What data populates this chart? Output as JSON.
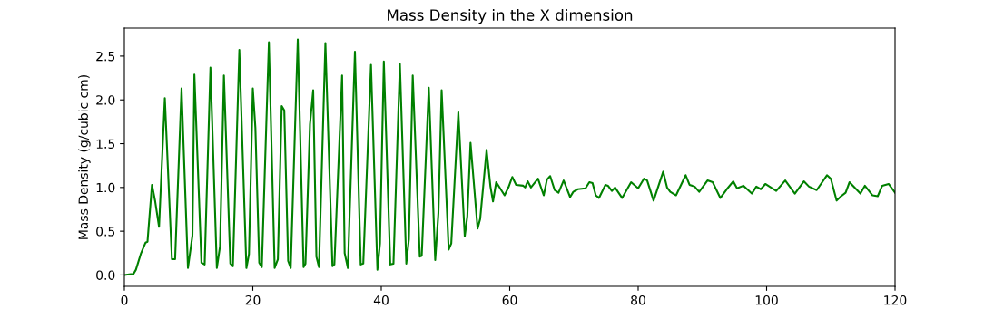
{
  "chart_data": {
    "type": "line",
    "title": "Mass Density in the X dimension",
    "ylabel": "Mass Density (g/cubic cm)",
    "xlim": [
      0,
      120
    ],
    "xticks": [
      0,
      20,
      40,
      60,
      80,
      100,
      120
    ],
    "ylim": [
      -0.13,
      2.82
    ],
    "yticks": [
      {
        "value": 0,
        "label": "0.0"
      },
      0.5,
      {
        "value": 1,
        "label": "1.0"
      },
      1.5,
      {
        "value": 2,
        "label": "2.0"
      },
      2.5
    ],
    "marker": "none",
    "line_style": "solid",
    "series": [
      {
        "color": "#008000",
        "x": [
          0,
          1.0,
          1.4,
          1.8,
          2.6,
          3.3,
          3.6,
          4.3,
          4.8,
          5.4,
          6.3,
          7.4,
          7.9,
          8.9,
          9.9,
          10.6,
          10.9,
          12.0,
          12.5,
          13.4,
          14.4,
          14.9,
          15.5,
          16.5,
          16.9,
          17.9,
          19.0,
          19.4,
          20.0,
          20.4,
          21.0,
          21.4,
          22.5,
          23.4,
          23.9,
          24.5,
          24.9,
          25.5,
          25.9,
          27.0,
          27.9,
          28.2,
          28.9,
          29.4,
          29.9,
          30.3,
          31.3,
          32.4,
          32.7,
          33.9,
          34.3,
          34.8,
          35.9,
          36.8,
          37.2,
          38.4,
          39.4,
          39.8,
          40.4,
          41.4,
          41.9,
          42.9,
          43.9,
          44.3,
          44.9,
          46.0,
          46.3,
          47.4,
          48.4,
          48.9,
          49.4,
          50.5,
          50.9,
          52.0,
          53.0,
          53.4,
          53.9,
          55.0,
          55.4,
          56.4,
          57.0,
          57.4,
          57.9,
          59.2,
          59.8,
          60.4,
          61.0,
          62.1,
          62.4,
          62.8,
          63.3,
          64.4,
          65.3,
          65.8,
          66.3,
          67.0,
          67.6,
          68.4,
          69.4,
          69.9,
          70.6,
          71.8,
          72.4,
          72.9,
          73.4,
          73.9,
          74.9,
          75.3,
          75.9,
          76.4,
          77.5,
          78.9,
          80.0,
          80.9,
          81.4,
          82.4,
          83.9,
          84.5,
          85.0,
          85.9,
          87.4,
          88.0,
          88.8,
          89.5,
          90.8,
          91.6,
          92.8,
          93.8,
          94.8,
          95.4,
          96.4,
          97.7,
          98.4,
          99.1,
          99.8,
          101.5,
          102.9,
          104.4,
          105.8,
          106.6,
          107.8,
          109.4,
          110.0,
          110.9,
          111.6,
          112.3,
          112.9,
          114.6,
          115.3,
          116.5,
          117.3,
          118.0,
          119.0,
          120
        ],
        "values": [
          0.0,
          0.01,
          0.01,
          0.06,
          0.25,
          0.37,
          0.38,
          1.03,
          0.84,
          0.55,
          2.02,
          0.18,
          0.18,
          2.13,
          0.08,
          0.45,
          2.29,
          0.14,
          0.12,
          2.37,
          0.08,
          0.33,
          2.28,
          0.13,
          0.1,
          2.57,
          0.08,
          0.24,
          2.13,
          1.68,
          0.14,
          0.09,
          2.66,
          0.08,
          0.18,
          1.93,
          1.88,
          0.16,
          0.08,
          2.69,
          0.09,
          0.13,
          1.72,
          2.11,
          0.21,
          0.09,
          2.65,
          0.1,
          0.12,
          2.28,
          0.25,
          0.08,
          2.55,
          0.12,
          0.13,
          2.4,
          0.06,
          0.36,
          2.44,
          0.12,
          0.13,
          2.41,
          0.13,
          0.41,
          2.28,
          0.21,
          0.22,
          2.14,
          0.17,
          0.71,
          2.11,
          0.29,
          0.36,
          1.86,
          0.44,
          0.67,
          1.51,
          0.53,
          0.64,
          1.43,
          1.01,
          0.84,
          1.06,
          0.91,
          1.0,
          1.12,
          1.03,
          1.02,
          1.0,
          1.07,
          1.0,
          1.1,
          0.91,
          1.09,
          1.13,
          0.97,
          0.94,
          1.08,
          0.89,
          0.95,
          0.98,
          0.99,
          1.06,
          1.05,
          0.91,
          0.88,
          1.03,
          1.02,
          0.96,
          1.0,
          0.88,
          1.06,
          0.99,
          1.1,
          1.08,
          0.85,
          1.18,
          1.0,
          0.95,
          0.91,
          1.14,
          1.03,
          1.01,
          0.95,
          1.08,
          1.06,
          0.88,
          0.98,
          1.07,
          0.99,
          1.02,
          0.93,
          1.01,
          0.98,
          1.04,
          0.96,
          1.08,
          0.93,
          1.07,
          1.01,
          0.97,
          1.14,
          1.1,
          0.85,
          0.9,
          0.94,
          1.06,
          0.93,
          1.02,
          0.91,
          0.9,
          1.02,
          1.04,
          0.94
        ]
      }
    ]
  }
}
